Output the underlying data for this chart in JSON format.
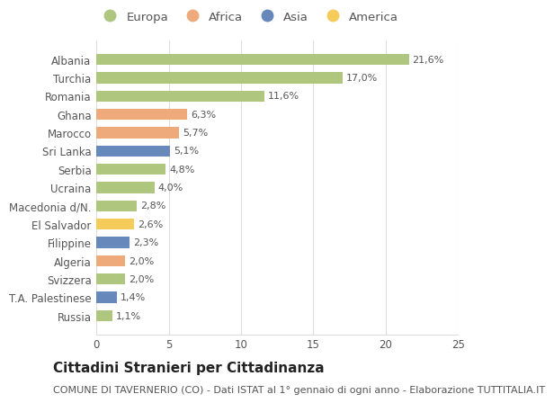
{
  "countries": [
    "Russia",
    "T.A. Palestinese",
    "Svizzera",
    "Algeria",
    "Filippine",
    "El Salvador",
    "Macedonia d/N.",
    "Ucraina",
    "Serbia",
    "Sri Lanka",
    "Marocco",
    "Ghana",
    "Romania",
    "Turchia",
    "Albania"
  ],
  "values": [
    1.1,
    1.4,
    2.0,
    2.0,
    2.3,
    2.6,
    2.8,
    4.0,
    4.8,
    5.1,
    5.7,
    6.3,
    11.6,
    17.0,
    21.6
  ],
  "labels": [
    "1,1%",
    "1,4%",
    "2,0%",
    "2,0%",
    "2,3%",
    "2,6%",
    "2,8%",
    "4,0%",
    "4,8%",
    "5,1%",
    "5,7%",
    "6,3%",
    "11,6%",
    "17,0%",
    "21,6%"
  ],
  "continents": [
    "Europa",
    "Asia",
    "Europa",
    "Africa",
    "Asia",
    "America",
    "Europa",
    "Europa",
    "Europa",
    "Asia",
    "Africa",
    "Africa",
    "Europa",
    "Europa",
    "Europa"
  ],
  "colors": {
    "Europa": "#aec67e",
    "Africa": "#eeaa7b",
    "Asia": "#6688bb",
    "America": "#f5cc5a"
  },
  "title": "Cittadini Stranieri per Cittadinanza",
  "subtitle": "COMUNE DI TAVERNERIO (CO) - Dati ISTAT al 1° gennaio di ogni anno - Elaborazione TUTTITALIA.IT",
  "xlim": [
    0,
    25
  ],
  "xticks": [
    0,
    5,
    10,
    15,
    20,
    25
  ],
  "background_color": "#ffffff",
  "bar_height": 0.6,
  "grid_color": "#dddddd",
  "title_fontsize": 11,
  "subtitle_fontsize": 8,
  "tick_fontsize": 8.5,
  "label_fontsize": 8,
  "legend_fontsize": 9.5
}
